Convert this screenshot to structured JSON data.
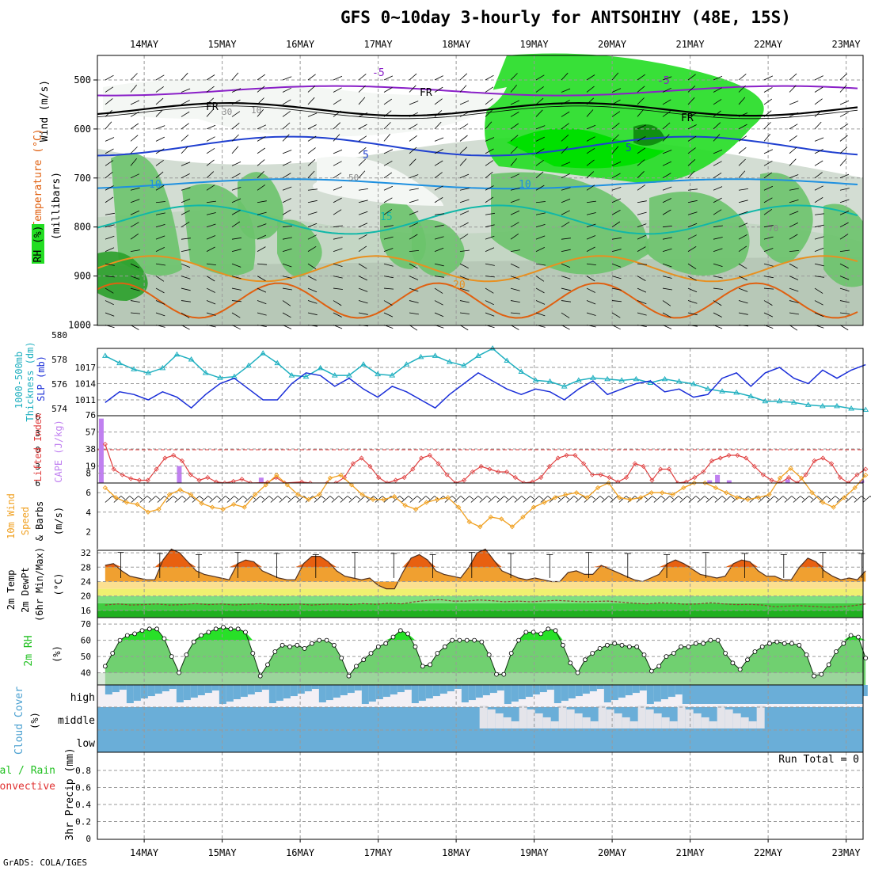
{
  "title": "GFS 0~10day 3-hourly for ANTSOHIHY (48E, 15S)",
  "footer": "GrADS: COLA/IGES",
  "chart_data": {
    "type": "meteogram",
    "dates": [
      "14MAY",
      "15MAY",
      "16MAY",
      "17MAY",
      "18MAY",
      "19MAY",
      "20MAY",
      "21MAY",
      "22MAY",
      "23MAY"
    ],
    "colors": {
      "rh_dark": "#2aa02a",
      "rh_mid": "#6cc36c",
      "rh_light": "#c4d6c4",
      "rh_bright": "#22dd22",
      "thickness": "#20b0c0",
      "slp": "#1a2ed8",
      "lifted": "#e04040",
      "cape": "#c080f0",
      "wind": "#f0a020",
      "temp": "#f08020",
      "dew": "#904030",
      "cloud": "#6aaed8",
      "haze": "#f3f0f5"
    },
    "panels": {
      "upper_air": {
        "ylabel_parts": [
          "Wind (m/s)",
          "Temperature (°C)",
          "RH (%)",
          "(millibars)"
        ],
        "yticks": [
          500,
          600,
          700,
          800,
          900,
          1000
        ],
        "isotherm_labels": [
          "-5",
          "5",
          "10",
          "15",
          "20",
          "FR"
        ],
        "rh_labels": [
          "30",
          "10",
          "50",
          "70"
        ]
      },
      "thickness_slp": {
        "ylabel_parts": [
          "1000-500mb",
          "Thickness (dm)",
          "SLP (mb)"
        ],
        "left_ticks": [
          574,
          576,
          578,
          580
        ],
        "right_ticks": [
          1011,
          1014,
          1017
        ],
        "thickness": [
          578.3,
          577.7,
          577.2,
          576.9,
          577.3,
          578.4,
          578.0,
          576.9,
          576.5,
          576.6,
          577.5,
          578.5,
          577.7,
          576.7,
          576.6,
          577.3,
          576.7,
          576.7,
          577.6,
          576.8,
          576.7,
          577.6,
          578.2,
          578.3,
          577.8,
          577.5,
          578.3,
          578.9,
          577.9,
          577.0,
          576.3,
          576.2,
          575.8,
          576.3,
          576.5,
          576.4,
          576.3,
          576.4,
          576.1,
          576.4,
          576.2,
          576.0,
          575.6,
          575.4,
          575.3,
          575.0,
          574.6,
          574.6,
          574.5,
          574.3,
          574.2,
          574.2,
          574.0,
          573.9
        ],
        "slp": [
          1010.5,
          1012.5,
          1012.0,
          1011.0,
          1012.5,
          1011.5,
          1009.5,
          1012.0,
          1014.0,
          1015.0,
          1013.0,
          1011.0,
          1011.0,
          1014.0,
          1016.0,
          1015.5,
          1013.5,
          1015.0,
          1013.0,
          1011.5,
          1013.5,
          1012.5,
          1011.0,
          1009.5,
          1012.0,
          1014.0,
          1016.0,
          1014.5,
          1013.0,
          1012.0,
          1013.0,
          1012.5,
          1011.0,
          1013.0,
          1014.5,
          1012.0,
          1013.0,
          1014.0,
          1014.5,
          1012.5,
          1013.0,
          1011.5,
          1012.0,
          1015.0,
          1016.0,
          1013.5,
          1016.0,
          1017.0,
          1015.0,
          1014.0,
          1016.5,
          1015.0,
          1016.5,
          1017.5
        ]
      },
      "lifted_cape": {
        "ylabel_parts": [
          "Lifted Index",
          "CAPE (J/kg)"
        ],
        "left_ticks": [
          6,
          3,
          0,
          -3,
          -6
        ],
        "right_ticks": [
          19,
          38,
          57,
          76
        ],
        "lifted_index": [
          -1.0,
          3.5,
          4.5,
          5.2,
          5.5,
          5.5,
          3.5,
          1.5,
          1.0,
          2.0,
          4.5,
          5.5,
          5.0,
          5.8,
          6.0,
          5.7,
          5.3,
          6.0,
          6.2,
          5.9,
          5.0,
          6.0,
          6.2,
          5.8,
          6.0,
          6.2,
          6.0,
          6.0,
          5.0,
          2.5,
          1.5,
          3.0,
          5.0,
          6.0,
          5.5,
          5.0,
          3.5,
          1.5,
          1.0,
          2.5,
          4.5,
          6.0,
          5.5,
          4.0,
          3.0,
          3.5,
          4.0,
          4.0,
          5.0,
          6.0,
          5.8,
          5.0,
          3.0,
          1.5,
          1.0,
          1.0,
          2.5,
          4.5,
          4.5,
          5.0,
          5.8,
          5.0,
          2.5,
          3.0,
          5.5,
          3.5,
          3.5,
          6.0,
          5.8,
          5.0,
          4.0,
          2.0,
          1.5,
          1.0,
          1.0,
          1.5,
          3.0,
          4.5,
          5.5,
          6.0,
          5.0,
          6.0,
          4.5,
          2.0,
          1.5,
          2.5,
          5.0,
          6.0,
          4.5,
          3.5
        ],
        "cape_bars": [
          {
            "x": 13.45,
            "value": 72
          },
          {
            "x": 14.45,
            "value": 19
          },
          {
            "x": 15.5,
            "value": 6
          },
          {
            "x": 21.25,
            "value": 3
          },
          {
            "x": 21.35,
            "value": 9
          },
          {
            "x": 21.5,
            "value": 3
          },
          {
            "x": 22.25,
            "value": 4
          },
          {
            "x": 23.2,
            "value": 3
          }
        ]
      },
      "wind10m": {
        "ylabel_parts": [
          "10m Wind",
          "Speed",
          "& Barbs",
          "(m/s)"
        ],
        "yticks": [
          2,
          4,
          6,
          8
        ],
        "speed": [
          6.5,
          5.5,
          5.0,
          4.8,
          4.0,
          4.3,
          5.8,
          6.3,
          5.8,
          4.9,
          4.5,
          4.3,
          4.8,
          4.5,
          5.8,
          6.8,
          7.8,
          6.8,
          5.8,
          5.3,
          5.8,
          7.5,
          7.8,
          6.8,
          5.8,
          5.3,
          5.3,
          5.6,
          4.7,
          4.3,
          5.0,
          5.3,
          5.5,
          4.5,
          3.0,
          2.5,
          3.5,
          3.3,
          2.5,
          3.5,
          4.5,
          5.0,
          5.5,
          5.8,
          6.0,
          5.5,
          6.5,
          7.0,
          5.5,
          5.3,
          5.5,
          6.0,
          6.0,
          5.8,
          6.5,
          7.0,
          7.0,
          6.5,
          6.0,
          5.5,
          5.3,
          5.5,
          5.8,
          7.5,
          8.5,
          7.5,
          6.0,
          5.0,
          4.5,
          5.5,
          6.5,
          7.8
        ]
      },
      "temp": {
        "ylabel_parts": [
          "2m Temp",
          "2m DewPt",
          "(6hr Min/Max)",
          "(°C)"
        ],
        "yticks": [
          16,
          20,
          24,
          28,
          32
        ],
        "temp": [
          28.5,
          29.0,
          27.0,
          25.5,
          25.0,
          24.5,
          24.5,
          30.0,
          33.0,
          32.0,
          29.5,
          27.0,
          26.0,
          25.5,
          25.0,
          24.5,
          29.0,
          30.0,
          29.5,
          27.0,
          26.0,
          25.0,
          24.5,
          24.5,
          29.0,
          31.0,
          31.0,
          29.5,
          27.0,
          25.5,
          25.0,
          24.5,
          25.0,
          23.0,
          22.0,
          22.0,
          26.5,
          30.5,
          31.5,
          30.0,
          27.0,
          26.0,
          25.5,
          25.0,
          28.0,
          32.0,
          33.0,
          30.0,
          27.0,
          26.0,
          25.0,
          24.5,
          25.0,
          24.5,
          24.0,
          24.0,
          26.5,
          27.0,
          26.0,
          26.0,
          28.5,
          27.5,
          26.5,
          25.5,
          24.5,
          24.0,
          25.0,
          26.0,
          29.0,
          30.0,
          29.0,
          27.5,
          26.0,
          25.5,
          25.0,
          25.5,
          29.0,
          30.0,
          29.5,
          27.0,
          25.5,
          25.5,
          24.5,
          24.5,
          28.0,
          30.5,
          29.5,
          27.0,
          25.5,
          24.5,
          25.0,
          24.5,
          27.0
        ],
        "dewpoint": [
          17.5,
          17.8,
          17.5,
          17.6,
          17.8,
          17.5,
          17.6,
          17.9,
          17.6,
          17.8,
          17.5,
          17.7,
          17.9,
          17.6,
          17.6,
          17.8,
          17.5,
          17.7,
          17.8,
          17.6,
          17.9,
          17.7,
          18.0,
          17.8,
          18.4,
          18.8,
          19.0,
          18.6,
          18.6,
          18.9,
          18.7,
          18.4,
          18.6,
          18.4,
          18.6,
          18.8,
          18.6,
          18.4,
          18.5,
          18.6,
          18.3,
          18.0,
          17.8,
          18.1,
          18.0,
          17.7,
          17.8,
          18.1,
          17.8,
          17.6,
          17.7,
          17.5,
          17.0,
          17.2,
          17.3,
          17.1,
          16.9,
          17.0,
          17.3,
          17.8
        ]
      },
      "rh2m": {
        "ylabel_parts": [
          "2m RH",
          "(%)"
        ],
        "yticks": [
          40,
          50,
          60,
          70
        ],
        "rh": [
          44,
          52,
          60,
          63,
          64,
          66,
          67,
          67,
          61,
          50,
          40,
          51,
          59,
          63,
          65,
          67,
          68,
          67,
          67,
          65,
          52,
          38,
          45,
          53,
          57,
          56,
          57,
          55,
          58,
          60,
          60,
          57,
          49,
          38,
          44,
          48,
          52,
          56,
          58,
          62,
          66,
          64,
          56,
          44,
          45,
          52,
          56,
          60,
          60,
          60,
          60,
          59,
          51,
          39,
          39,
          52,
          60,
          65,
          65,
          64,
          67,
          66,
          57,
          46,
          40,
          48,
          52,
          55,
          57,
          58,
          57,
          56,
          56,
          51,
          41,
          44,
          50,
          52,
          56,
          56,
          58,
          58,
          60,
          60,
          52,
          46,
          42,
          48,
          53,
          56,
          58,
          59,
          58,
          58,
          57,
          51,
          38,
          39,
          45,
          53,
          58,
          63,
          62,
          49
        ]
      },
      "cloud": {
        "ylabel_parts": [
          "Cloud Cover",
          "(%)"
        ],
        "levels": [
          "high",
          "middle",
          "low"
        ]
      },
      "precip": {
        "ylabel_parts": [
          "Total / Rain",
          "Convective",
          "3hr Precip (mm)"
        ],
        "yticks": [
          "0",
          "0.2",
          "0.4",
          "0.6",
          "0.8"
        ],
        "run_total_label": "Run Total = 0"
      }
    }
  }
}
